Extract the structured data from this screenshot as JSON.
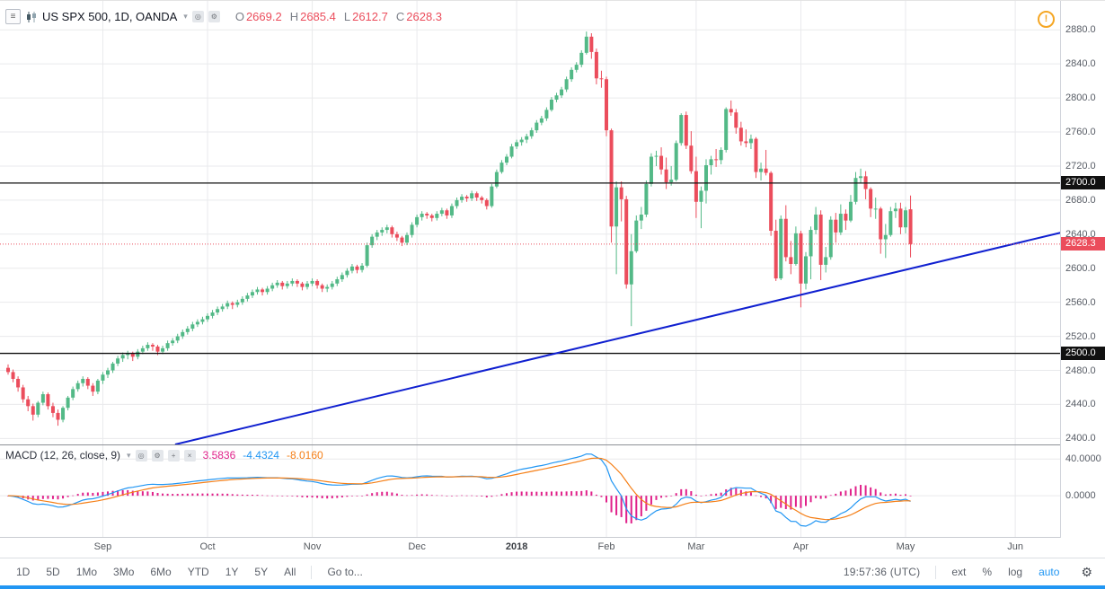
{
  "header": {
    "symbol_title": "US SPX 500, 1D, OANDA",
    "ohlc": [
      {
        "label": "O",
        "value": "2669.2"
      },
      {
        "label": "H",
        "value": "2685.4"
      },
      {
        "label": "L",
        "value": "2612.7"
      },
      {
        "label": "C",
        "value": "2628.3"
      }
    ]
  },
  "icons": {
    "menu": "≡",
    "caret": "▾",
    "eye": "◎",
    "gear": "⚙",
    "plus": "+",
    "close": "×",
    "warning": "!",
    "toolbar_gear": "⚙"
  },
  "indicator": {
    "title": "MACD (12, 26, close, 9)",
    "values": [
      {
        "text": "3.5836",
        "color": "#e0218a"
      },
      {
        "text": "-4.4324",
        "color": "#2196f3"
      },
      {
        "text": "-8.0160",
        "color": "#f57f17"
      }
    ]
  },
  "price_axis": {
    "ticks": [
      2880,
      2840,
      2800,
      2760,
      2720,
      2680,
      2640,
      2600,
      2560,
      2520,
      2480,
      2440,
      2400
    ],
    "line_labels": [
      {
        "text": "2700.0",
        "price": 2700,
        "bg": "#111111"
      },
      {
        "text": "2500.0",
        "price": 2500,
        "bg": "#111111"
      }
    ],
    "last_price_label": {
      "text": "2628.3",
      "price": 2628.3,
      "bg": "#eb4d5c"
    },
    "macd_ticks": [
      {
        "text": "40.0000",
        "value": 40
      },
      {
        "text": "0.0000",
        "value": 0
      }
    ]
  },
  "toolbar": {
    "ranges": [
      {
        "label": "1D",
        "name": "1d"
      },
      {
        "label": "5D",
        "name": "5d"
      },
      {
        "label": "1Mo",
        "name": "1mo"
      },
      {
        "label": "3Mo",
        "name": "3mo"
      },
      {
        "label": "6Mo",
        "name": "6mo"
      },
      {
        "label": "YTD",
        "name": "ytd"
      },
      {
        "label": "1Y",
        "name": "1y"
      },
      {
        "label": "5Y",
        "name": "5y"
      },
      {
        "label": "All",
        "name": "all"
      }
    ],
    "goto_label": "Go to...",
    "clock": "19:57:36 (UTC)",
    "scale_controls": [
      {
        "label": "ext",
        "name": "ext",
        "active": false
      },
      {
        "label": "%",
        "name": "percent",
        "active": false
      },
      {
        "label": "log",
        "name": "log",
        "active": false
      },
      {
        "label": "auto",
        "name": "auto",
        "active": true
      }
    ],
    "accent_blue": "#2196f3"
  },
  "chart_data": {
    "type": "candlestick",
    "title": "US SPX 500, 1D, OANDA",
    "ohlc_status": {
      "open": 2669.2,
      "high": 2685.4,
      "low": 2612.7,
      "close": 2628.3
    },
    "price_ylim": [
      2393,
      2914
    ],
    "grid_price_step": 40,
    "macd_ylim": [
      -44,
      55
    ],
    "colors": {
      "up": "#53b987",
      "down": "#eb4d5c",
      "grid": "#e9eaec",
      "axis_text": "#565b64"
    },
    "months": [
      {
        "label": "Sep",
        "i": 19
      },
      {
        "label": "Oct",
        "i": 40
      },
      {
        "label": "Nov",
        "i": 61
      },
      {
        "label": "Dec",
        "i": 82
      },
      {
        "label": "2018",
        "i": 102,
        "em": true
      },
      {
        "label": "Feb",
        "i": 120
      },
      {
        "label": "Mar",
        "i": 138
      },
      {
        "label": "Apr",
        "i": 159
      },
      {
        "label": "May",
        "i": 180
      },
      {
        "label": "Jun",
        "i": 202
      }
    ],
    "hlines": [
      {
        "price": 2700,
        "color": "#111111"
      },
      {
        "price": 2500,
        "color": "#111111"
      }
    ],
    "last_price_line": {
      "price": 2628.3,
      "color": "#eb4d5c",
      "style": "dotted"
    },
    "trendline": {
      "color": "#1020d0",
      "width": 2,
      "points": [
        {
          "i": 33.5,
          "price": 2393
        },
        {
          "i": 212,
          "price": 2643
        }
      ]
    },
    "macd": {
      "params": [
        12,
        26,
        9
      ],
      "status": {
        "histogram": 3.5836,
        "macd": -4.4324,
        "signal": -8.016
      },
      "colors": {
        "macd": "#2196f3",
        "signal": "#f57f17",
        "histogram": "#e0218a"
      }
    },
    "candles": [
      [
        2483,
        2487,
        2475,
        2478
      ],
      [
        2478,
        2481,
        2466,
        2470
      ],
      [
        2470,
        2473,
        2455,
        2460
      ],
      [
        2460,
        2463,
        2442,
        2446
      ],
      [
        2446,
        2450,
        2432,
        2438
      ],
      [
        2438,
        2441,
        2421,
        2428
      ],
      [
        2428,
        2444,
        2425,
        2442
      ],
      [
        2442,
        2455,
        2439,
        2452
      ],
      [
        2452,
        2454,
        2434,
        2438
      ],
      [
        2438,
        2442,
        2425,
        2430
      ],
      [
        2430,
        2434,
        2415,
        2422
      ],
      [
        2422,
        2438,
        2419,
        2436
      ],
      [
        2436,
        2450,
        2433,
        2448
      ],
      [
        2448,
        2461,
        2445,
        2458
      ],
      [
        2458,
        2468,
        2455,
        2465
      ],
      [
        2465,
        2473,
        2461,
        2470
      ],
      [
        2470,
        2472,
        2458,
        2462
      ],
      [
        2462,
        2465,
        2450,
        2455
      ],
      [
        2455,
        2470,
        2452,
        2468
      ],
      [
        2468,
        2478,
        2464,
        2475
      ],
      [
        2475,
        2483,
        2471,
        2480
      ],
      [
        2480,
        2490,
        2477,
        2488
      ],
      [
        2488,
        2497,
        2485,
        2494
      ],
      [
        2494,
        2501,
        2490,
        2498
      ],
      [
        2498,
        2503,
        2493,
        2500
      ],
      [
        2500,
        2502,
        2491,
        2496
      ],
      [
        2496,
        2505,
        2493,
        2502
      ],
      [
        2502,
        2509,
        2499,
        2506
      ],
      [
        2506,
        2513,
        2503,
        2510
      ],
      [
        2510,
        2512,
        2503,
        2508
      ],
      [
        2508,
        2510,
        2498,
        2502
      ],
      [
        2502,
        2509,
        2499,
        2506
      ],
      [
        2506,
        2515,
        2503,
        2512
      ],
      [
        2512,
        2518,
        2509,
        2515
      ],
      [
        2515,
        2523,
        2512,
        2520
      ],
      [
        2520,
        2528,
        2517,
        2525
      ],
      [
        2525,
        2532,
        2522,
        2529
      ],
      [
        2529,
        2537,
        2526,
        2534
      ],
      [
        2534,
        2540,
        2531,
        2537
      ],
      [
        2537,
        2543,
        2534,
        2540
      ],
      [
        2540,
        2547,
        2537,
        2544
      ],
      [
        2544,
        2551,
        2541,
        2548
      ],
      [
        2548,
        2555,
        2545,
        2552
      ],
      [
        2552,
        2558,
        2549,
        2555
      ],
      [
        2555,
        2562,
        2552,
        2559
      ],
      [
        2559,
        2561,
        2552,
        2557
      ],
      [
        2557,
        2563,
        2554,
        2560
      ],
      [
        2560,
        2567,
        2557,
        2564
      ],
      [
        2564,
        2571,
        2561,
        2568
      ],
      [
        2568,
        2575,
        2565,
        2572
      ],
      [
        2572,
        2578,
        2569,
        2575
      ],
      [
        2575,
        2577,
        2568,
        2572
      ],
      [
        2572,
        2579,
        2569,
        2576
      ],
      [
        2576,
        2583,
        2573,
        2580
      ],
      [
        2580,
        2586,
        2577,
        2583
      ],
      [
        2583,
        2585,
        2575,
        2579
      ],
      [
        2579,
        2585,
        2576,
        2582
      ],
      [
        2582,
        2588,
        2579,
        2585
      ],
      [
        2585,
        2587,
        2578,
        2582
      ],
      [
        2582,
        2584,
        2574,
        2578
      ],
      [
        2578,
        2585,
        2575,
        2582
      ],
      [
        2582,
        2588,
        2579,
        2585
      ],
      [
        2585,
        2587,
        2576,
        2580
      ],
      [
        2580,
        2582,
        2572,
        2576
      ],
      [
        2576,
        2581,
        2572,
        2578
      ],
      [
        2578,
        2585,
        2575,
        2582
      ],
      [
        2582,
        2590,
        2579,
        2587
      ],
      [
        2587,
        2595,
        2584,
        2592
      ],
      [
        2592,
        2600,
        2589,
        2597
      ],
      [
        2597,
        2605,
        2594,
        2602
      ],
      [
        2602,
        2604,
        2594,
        2598
      ],
      [
        2598,
        2606,
        2595,
        2603
      ],
      [
        2603,
        2630,
        2601,
        2627
      ],
      [
        2627,
        2640,
        2624,
        2637
      ],
      [
        2637,
        2645,
        2633,
        2642
      ],
      [
        2642,
        2648,
        2638,
        2645
      ],
      [
        2645,
        2651,
        2641,
        2648
      ],
      [
        2648,
        2650,
        2636,
        2640
      ],
      [
        2640,
        2643,
        2632,
        2636
      ],
      [
        2636,
        2638,
        2626,
        2630
      ],
      [
        2630,
        2642,
        2627,
        2639
      ],
      [
        2639,
        2654,
        2636,
        2651
      ],
      [
        2651,
        2663,
        2648,
        2660
      ],
      [
        2660,
        2667,
        2656,
        2664
      ],
      [
        2664,
        2666,
        2658,
        2662
      ],
      [
        2662,
        2664,
        2655,
        2659
      ],
      [
        2659,
        2667,
        2656,
        2664
      ],
      [
        2664,
        2671,
        2661,
        2668
      ],
      [
        2668,
        2670,
        2658,
        2662
      ],
      [
        2662,
        2676,
        2659,
        2673
      ],
      [
        2673,
        2683,
        2670,
        2680
      ],
      [
        2680,
        2687,
        2677,
        2684
      ],
      [
        2684,
        2686,
        2678,
        2682
      ],
      [
        2682,
        2691,
        2679,
        2688
      ],
      [
        2688,
        2690,
        2679,
        2683
      ],
      [
        2683,
        2685,
        2676,
        2680
      ],
      [
        2680,
        2682,
        2669,
        2673
      ],
      [
        2673,
        2699,
        2671,
        2696
      ],
      [
        2696,
        2716,
        2694,
        2713
      ],
      [
        2713,
        2727,
        2711,
        2724
      ],
      [
        2724,
        2734,
        2721,
        2731
      ],
      [
        2731,
        2746,
        2729,
        2743
      ],
      [
        2743,
        2751,
        2740,
        2748
      ],
      [
        2748,
        2754,
        2744,
        2751
      ],
      [
        2751,
        2758,
        2747,
        2755
      ],
      [
        2755,
        2765,
        2752,
        2762
      ],
      [
        2762,
        2774,
        2759,
        2771
      ],
      [
        2771,
        2779,
        2768,
        2776
      ],
      [
        2776,
        2789,
        2773,
        2786
      ],
      [
        2786,
        2801,
        2784,
        2798
      ],
      [
        2798,
        2806,
        2795,
        2803
      ],
      [
        2803,
        2813,
        2800,
        2810
      ],
      [
        2810,
        2825,
        2807,
        2822
      ],
      [
        2822,
        2836,
        2819,
        2833
      ],
      [
        2833,
        2842,
        2830,
        2839
      ],
      [
        2839,
        2856,
        2836,
        2853
      ],
      [
        2853,
        2878,
        2851,
        2872
      ],
      [
        2872,
        2876,
        2846,
        2854
      ],
      [
        2854,
        2858,
        2816,
        2823
      ],
      [
        2823,
        2832,
        2812,
        2822
      ],
      [
        2822,
        2825,
        2755,
        2762
      ],
      [
        2762,
        2764,
        2630,
        2649
      ],
      [
        2649,
        2702,
        2593,
        2695
      ],
      [
        2695,
        2702,
        2655,
        2681
      ],
      [
        2681,
        2685,
        2576,
        2581
      ],
      [
        2581,
        2640,
        2532,
        2620
      ],
      [
        2620,
        2662,
        2618,
        2656
      ],
      [
        2656,
        2672,
        2646,
        2663
      ],
      [
        2663,
        2703,
        2660,
        2699
      ],
      [
        2699,
        2735,
        2696,
        2731
      ],
      [
        2731,
        2738,
        2720,
        2732
      ],
      [
        2732,
        2742,
        2710,
        2716
      ],
      [
        2716,
        2730,
        2693,
        2701
      ],
      [
        2701,
        2720,
        2697,
        2704
      ],
      [
        2704,
        2750,
        2702,
        2747
      ],
      [
        2747,
        2782,
        2744,
        2780
      ],
      [
        2780,
        2784,
        2740,
        2744
      ],
      [
        2744,
        2761,
        2711,
        2714
      ],
      [
        2714,
        2731,
        2659,
        2678
      ],
      [
        2678,
        2696,
        2647,
        2691
      ],
      [
        2691,
        2728,
        2676,
        2721
      ],
      [
        2721,
        2732,
        2710,
        2728
      ],
      [
        2728,
        2740,
        2719,
        2727
      ],
      [
        2727,
        2742,
        2722,
        2739
      ],
      [
        2739,
        2789,
        2736,
        2787
      ],
      [
        2787,
        2797,
        2779,
        2783
      ],
      [
        2783,
        2787,
        2758,
        2765
      ],
      [
        2765,
        2772,
        2744,
        2749
      ],
      [
        2749,
        2763,
        2742,
        2747
      ],
      [
        2747,
        2757,
        2740,
        2752
      ],
      [
        2752,
        2754,
        2706,
        2713
      ],
      [
        2713,
        2724,
        2703,
        2717
      ],
      [
        2717,
        2739,
        2709,
        2712
      ],
      [
        2712,
        2714,
        2638,
        2644
      ],
      [
        2644,
        2657,
        2585,
        2588
      ],
      [
        2588,
        2662,
        2586,
        2658
      ],
      [
        2658,
        2674,
        2608,
        2613
      ],
      [
        2613,
        2632,
        2593,
        2605
      ],
      [
        2605,
        2649,
        2603,
        2641
      ],
      [
        2641,
        2644,
        2554,
        2582
      ],
      [
        2582,
        2619,
        2575,
        2614
      ],
      [
        2614,
        2649,
        2587,
        2645
      ],
      [
        2645,
        2672,
        2640,
        2663
      ],
      [
        2663,
        2668,
        2586,
        2604
      ],
      [
        2604,
        2625,
        2595,
        2613
      ],
      [
        2613,
        2661,
        2610,
        2657
      ],
      [
        2657,
        2665,
        2630,
        2642
      ],
      [
        2642,
        2675,
        2639,
        2664
      ],
      [
        2664,
        2669,
        2645,
        2656
      ],
      [
        2656,
        2686,
        2654,
        2678
      ],
      [
        2678,
        2713,
        2675,
        2706
      ],
      [
        2706,
        2717,
        2700,
        2708
      ],
      [
        2708,
        2714,
        2681,
        2693
      ],
      [
        2693,
        2695,
        2660,
        2670
      ],
      [
        2670,
        2683,
        2658,
        2670
      ],
      [
        2670,
        2672,
        2617,
        2634
      ],
      [
        2634,
        2652,
        2612,
        2639
      ],
      [
        2639,
        2672,
        2637,
        2667
      ],
      [
        2667,
        2677,
        2659,
        2670
      ],
      [
        2670,
        2677,
        2640,
        2648
      ],
      [
        2648,
        2672,
        2641,
        2668
      ],
      [
        2669.2,
        2685.4,
        2612.7,
        2628.3
      ]
    ]
  }
}
